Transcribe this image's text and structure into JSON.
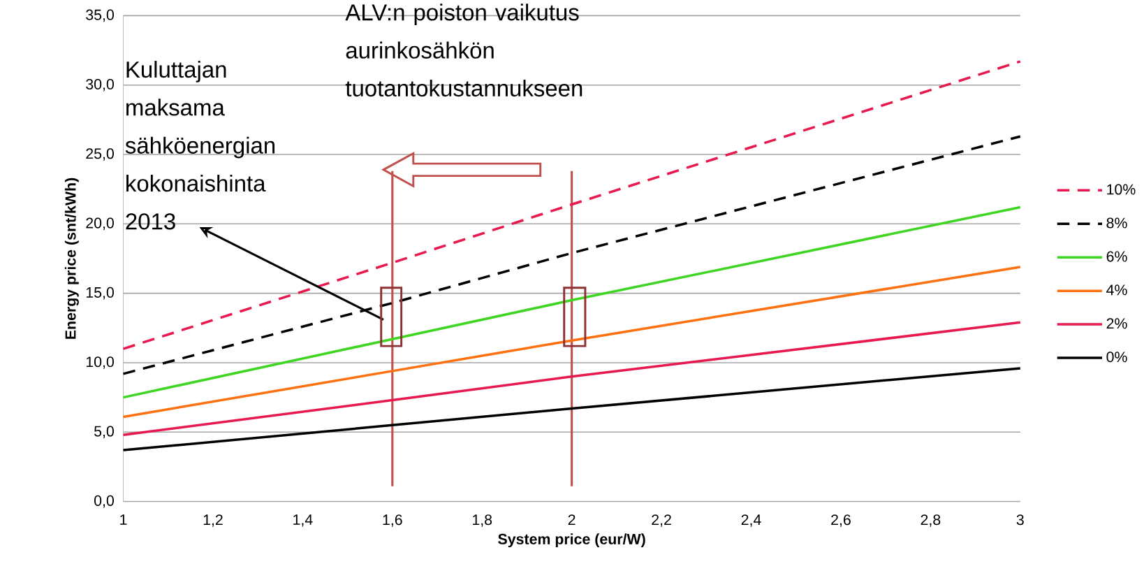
{
  "chart_data": {
    "type": "line",
    "xlabel": "System price (eur/W)",
    "ylabel": "Energy price (snt/kWh)",
    "x": [
      1,
      1.6,
      2,
      3
    ],
    "series": [
      {
        "name": "10%",
        "color": "#e8194f",
        "line_style": "dashed",
        "values": [
          11.0,
          17.2,
          21.4,
          31.7
        ]
      },
      {
        "name": "8%",
        "color": "#000000",
        "line_style": "dashed",
        "values": [
          9.2,
          14.3,
          17.9,
          26.3
        ]
      },
      {
        "name": "6%",
        "color": "#3ed622",
        "line_style": "solid",
        "values": [
          7.5,
          11.7,
          14.5,
          21.2
        ]
      },
      {
        "name": "4%",
        "color": "#ff7010",
        "line_style": "solid",
        "values": [
          6.1,
          9.4,
          11.6,
          16.9
        ]
      },
      {
        "name": "2%",
        "color": "#e8194f",
        "line_style": "solid",
        "values": [
          4.8,
          7.3,
          9.0,
          12.9
        ]
      },
      {
        "name": "0%",
        "color": "#000000",
        "line_style": "solid",
        "values": [
          3.7,
          5.5,
          6.7,
          9.6
        ]
      }
    ],
    "xlim": [
      1,
      3
    ],
    "xticks": [
      1,
      {
        "value": 1.2,
        "label": "1,2"
      },
      {
        "value": 1.4,
        "label": "1,4"
      },
      {
        "value": 1.6,
        "label": "1,6"
      },
      {
        "value": 1.8,
        "label": "1,8"
      },
      2,
      {
        "value": 2.2,
        "label": "2,2"
      },
      {
        "value": 2.4,
        "label": "2,4"
      },
      {
        "value": 2.6,
        "label": "2,6"
      },
      {
        "value": 2.8,
        "label": "2,8"
      },
      3
    ],
    "ylim": [
      0,
      35
    ],
    "yticks": [
      {
        "value": 0,
        "label": "0,0"
      },
      {
        "value": 5,
        "label": "5,0"
      },
      {
        "value": 10,
        "label": "10,0"
      },
      {
        "value": 15,
        "label": "15,0"
      },
      {
        "value": 20,
        "label": "20,0"
      },
      {
        "value": 25,
        "label": "25,0"
      },
      {
        "value": 30,
        "label": "30,0"
      },
      {
        "value": 35,
        "label": "35,0"
      }
    ],
    "grid": "y",
    "legend": "right",
    "marker": "none",
    "ref_lines": [
      {
        "axis": "x",
        "value": 1.6,
        "color": "#c0504d"
      },
      {
        "axis": "x",
        "value": 2,
        "color": "#c0504d"
      }
    ],
    "annotations": [
      "Kuluttajan maksama sähköenergian kokonaishinta 2013",
      "ALV:n poiston vaikutus aurinkosähkön tuotantokustannukseen"
    ]
  }
}
